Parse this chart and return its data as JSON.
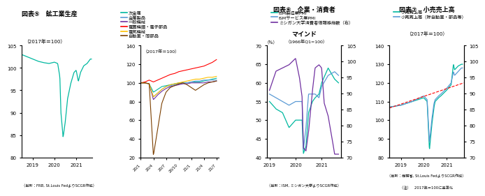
{
  "chart4": {
    "title_main": "図表⑤　鉱工業生産",
    "subtitle": "（2017年＝100）",
    "source": "（出所：FRB, St.Louis FedよりSCGR作成）",
    "color": "#00B8A0",
    "ylim": [
      80,
      105
    ],
    "yticks": [
      80,
      85,
      90,
      95,
      100,
      105
    ],
    "xlim": [
      2018.5,
      2021.75
    ],
    "xtick_vals": [
      2019,
      2020,
      2021
    ],
    "xtick_labels": [
      "2019",
      "2020",
      "2021"
    ]
  },
  "chart4b": {
    "subtitle": "（2017年＝100）",
    "ylim": [
      20,
      140
    ],
    "yticks": [
      20,
      40,
      60,
      80,
      100,
      120,
      140
    ],
    "xtick_labels": [
      "20/1",
      "20/4",
      "20/7",
      "20/10",
      "21/1",
      "21/4",
      "21/7"
    ],
    "legend": [
      "次金属",
      "金属製品",
      "一般機械",
      "電算機類・電子部品",
      "電気機械",
      "自動車・同部品"
    ],
    "colors": [
      "#00B8A0",
      "#5B9BD5",
      "#7030A0",
      "#FF0000",
      "#FFC000",
      "#7B3F00"
    ]
  },
  "chart5": {
    "title1": "図表⑥　企業・消費者",
    "title2": "マインド",
    "source": "（出所：ISM, ミシガン大学よりSCGR作成）",
    "legend": [
      "ISM製造業PMI",
      "ISMサービス業PMI",
      "ミシガン大学消費者信頼感指数（右）"
    ],
    "colors": [
      "#00B8A0",
      "#5B9BD5",
      "#7030A0"
    ],
    "ylabel_left": "（％）",
    "subtitle_right": "（1966年Q1=100）",
    "ylim_left": [
      40,
      70
    ],
    "ylim_right": [
      70,
      105
    ],
    "yticks_left": [
      40,
      45,
      50,
      55,
      60,
      65,
      70
    ],
    "yticks_right": [
      70,
      75,
      80,
      85,
      90,
      95,
      100,
      105
    ],
    "xlim": [
      2018.9,
      2021.75
    ],
    "xtick_vals": [
      2019,
      2020,
      2021
    ],
    "xtick_labels": [
      "2019",
      "2020",
      "2021"
    ]
  },
  "chart6": {
    "title": "図表⑦　小売売上高",
    "subtitle": "（2017年＝100）",
    "source1": "（出所：商務省, St.Louis FedよりSCGR作成）",
    "source2": "（注）　2017年＝100に基準化",
    "legend": [
      "小売売上高",
      "小売売上高（除自動車・部品等）"
    ],
    "colors": [
      "#00B8A0",
      "#5B9BD5"
    ],
    "trend_color": "#FF0000",
    "ylim_left": [
      80,
      140
    ],
    "ylim_right": [
      70,
      105
    ],
    "yticks_left": [
      80,
      90,
      100,
      110,
      120,
      130,
      140
    ],
    "yticks_right": [
      70,
      75,
      80,
      85,
      90,
      95,
      100,
      105
    ],
    "xlim": [
      2018.5,
      2021.75
    ],
    "xtick_vals": [
      2019,
      2020,
      2021
    ],
    "xtick_labels": [
      "2019",
      "2020",
      "2021"
    ],
    "trend_x": [
      2018.5,
      2021.75
    ],
    "trend_y": [
      106.5,
      120.0
    ]
  }
}
